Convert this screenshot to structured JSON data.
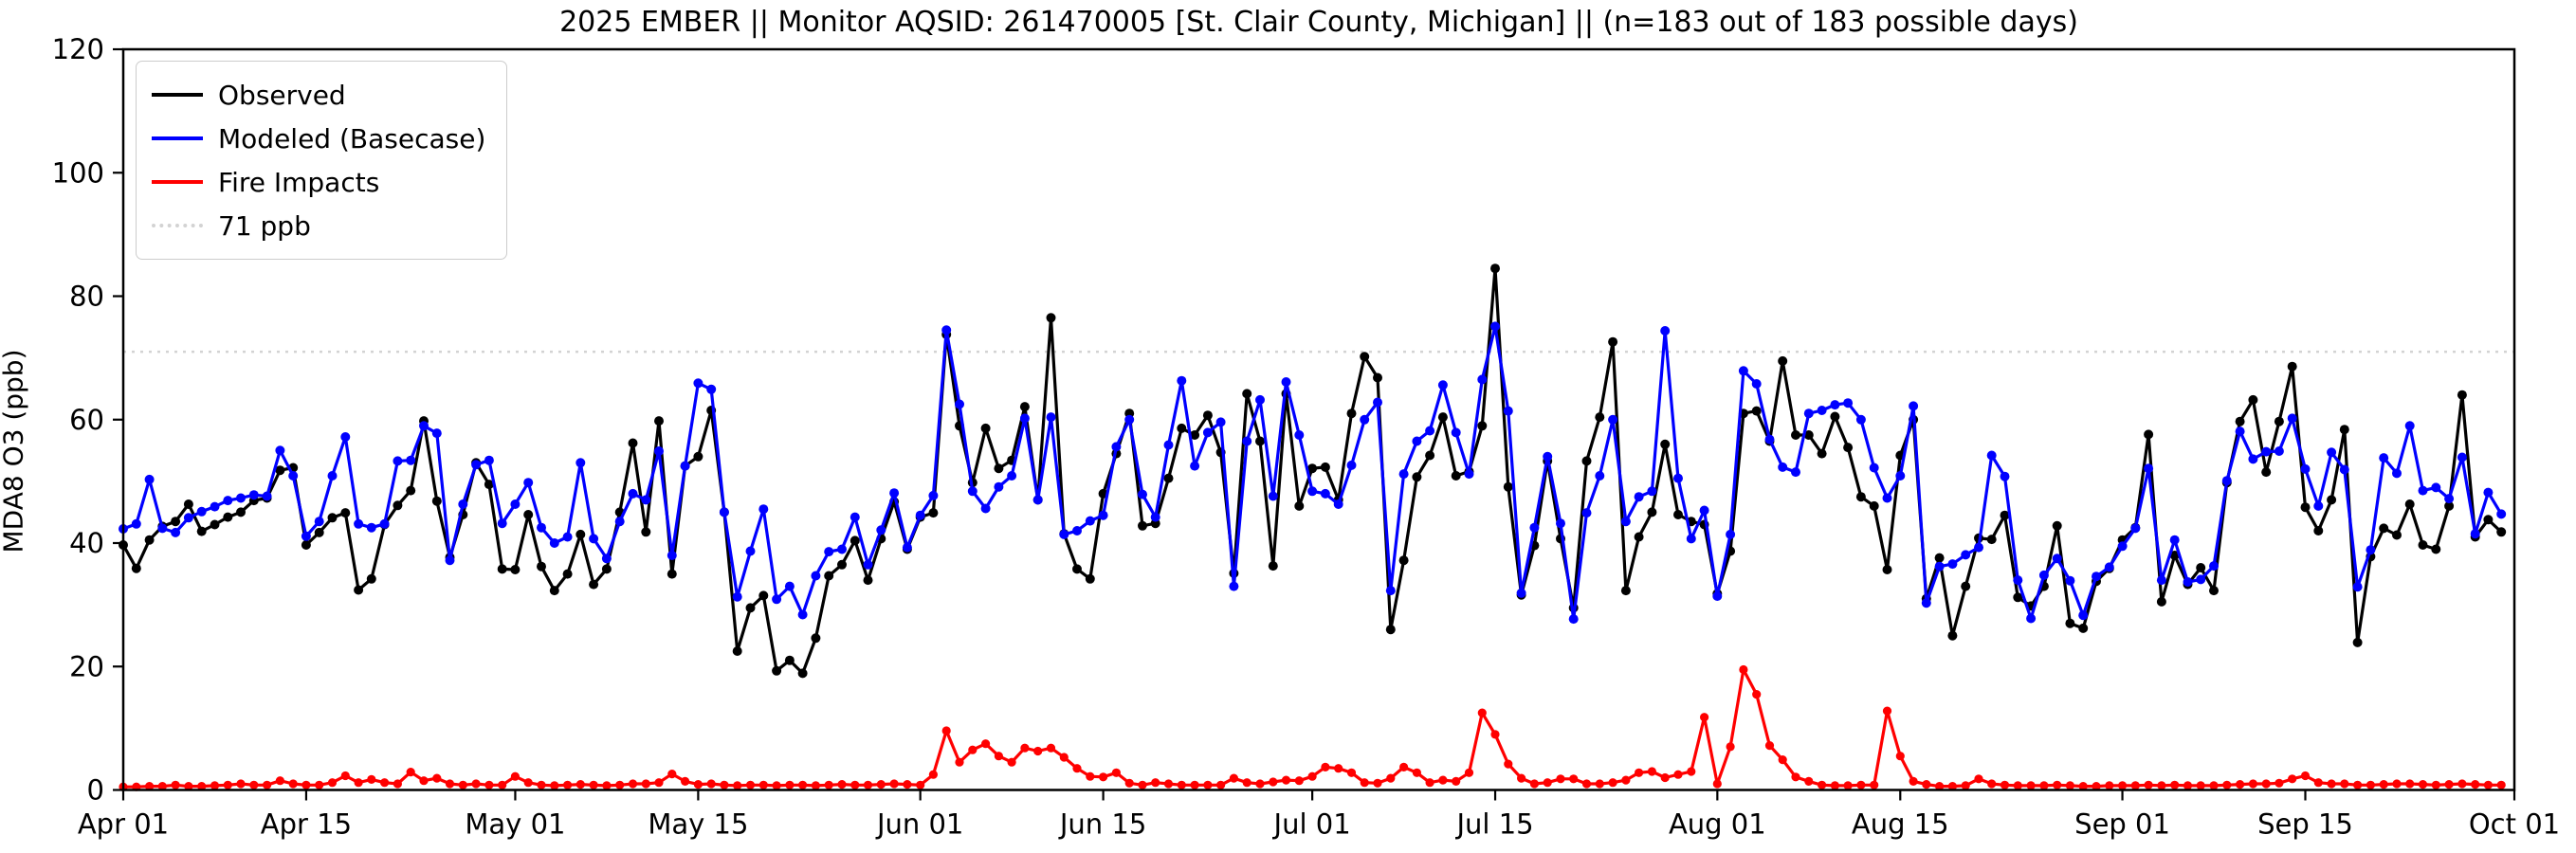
{
  "chart_data": {
    "type": "line",
    "title": "2025 EMBER || Monitor AQSID: 261470005 [St. Clair County, Michigan] || (n=183 out of 183 possible days)",
    "xlabel": "",
    "ylabel": "MDA8 O3 (ppb)",
    "ylim": [
      0,
      120
    ],
    "yticks": [
      0,
      20,
      40,
      60,
      80,
      100,
      120
    ],
    "x_start_label": "Apr 01",
    "n_days": 183,
    "grid": false,
    "legend_position": "upper-left",
    "xticks": [
      {
        "day": 0,
        "label": "Apr 01"
      },
      {
        "day": 14,
        "label": "Apr 15"
      },
      {
        "day": 30,
        "label": "May 01"
      },
      {
        "day": 44,
        "label": "May 15"
      },
      {
        "day": 61,
        "label": "Jun 01"
      },
      {
        "day": 75,
        "label": "Jun 15"
      },
      {
        "day": 91,
        "label": "Jul 01"
      },
      {
        "day": 105,
        "label": "Jul 15"
      },
      {
        "day": 122,
        "label": "Aug 01"
      },
      {
        "day": 136,
        "label": "Aug 15"
      },
      {
        "day": 153,
        "label": "Sep 01"
      },
      {
        "day": 167,
        "label": "Sep 15"
      },
      {
        "day": 183,
        "label": "Oct 01"
      }
    ],
    "threshold": {
      "value": 71,
      "label": "71 ppb",
      "color": "#d3d3d3",
      "style": "dotted"
    },
    "series": [
      {
        "name": "Observed",
        "color": "#000000",
        "style": "solid",
        "values": [
          39.7,
          35.9,
          40.5,
          42.7,
          43.5,
          46.3,
          41.9,
          43,
          44.2,
          45,
          46.9,
          47.3,
          51.8,
          52.2,
          39.7,
          41.7,
          44.1,
          44.9,
          32.4,
          34.2,
          43,
          46.1,
          48.5,
          59.8,
          46.8,
          37.7,
          44.6,
          53,
          49.5,
          35.8,
          35.7,
          44.6,
          36.2,
          32.3,
          35,
          41.4,
          33.3,
          35.8,
          45,
          56.2,
          41.8,
          59.8,
          35,
          52.5,
          54,
          61.5,
          45,
          22.5,
          29.5,
          31.5,
          19.3,
          21,
          18.9,
          24.6,
          34.7,
          36.5,
          40.4,
          34,
          40.7,
          46.7,
          39,
          44.2,
          44.9,
          73.8,
          59,
          49.8,
          58.6,
          52.1,
          53.4,
          62.1,
          47,
          76.5,
          41.5,
          35.8,
          34.2,
          48,
          54.5,
          61,
          42.8,
          43.2,
          50.5,
          58.6,
          57.5,
          60.7,
          54.7,
          35.1,
          64.2,
          56.5,
          36.3,
          64.2,
          46,
          52.1,
          52.3,
          47,
          61,
          70.2,
          66.8,
          26,
          37.2,
          50.7,
          54.2,
          60.4,
          50.9,
          51.6,
          59,
          84.5,
          49.1,
          31.6,
          39.6,
          53.3,
          40.7,
          29.5,
          53.3,
          60.4,
          72.6,
          32.3,
          41,
          45,
          56,
          44.6,
          43.5,
          43,
          31.8,
          38.7,
          61,
          61.4,
          56.5,
          69.5,
          57.5,
          57.5,
          54.5,
          60.5,
          55.5,
          47.5,
          46,
          35.7,
          54.2,
          60,
          31,
          37.6,
          25,
          33,
          40.8,
          40.6,
          44.5,
          31.2,
          29.8,
          33,
          42.8,
          27,
          26.2,
          33.8,
          35.9,
          40.5,
          42.5,
          57.6,
          30.5,
          38,
          33.3,
          36,
          32.3,
          49.8,
          59.7,
          63.2,
          51.5,
          59.7,
          68.6,
          45.8,
          42,
          47,
          58.4,
          23.9,
          37.8,
          42.4,
          41.3,
          46.3,
          39.7,
          39,
          46,
          64,
          41,
          43.8,
          41.8
        ]
      },
      {
        "name": "Modeled (Basecase)",
        "color": "#0000ff",
        "style": "solid",
        "values": [
          42.3,
          43.1,
          50.3,
          42.4,
          41.7,
          44.1,
          45.1,
          45.9,
          46.9,
          47.3,
          47.8,
          47.6,
          55,
          50.9,
          41.1,
          43.5,
          50.9,
          57.2,
          43.1,
          42.5,
          43.1,
          53.3,
          53.4,
          59,
          57.8,
          37.2,
          46.3,
          52.7,
          53.4,
          43.2,
          46.3,
          49.8,
          42.5,
          40,
          41,
          53,
          40.7,
          37.5,
          43.5,
          48,
          47,
          54.9,
          38,
          52.5,
          65.9,
          64.9,
          45,
          31.3,
          38.7,
          45.5,
          30.9,
          33,
          28.4,
          34.7,
          38.6,
          39,
          44.2,
          36.5,
          42.1,
          48.1,
          39.3,
          44.5,
          47.7,
          74.5,
          62.5,
          48.4,
          45.6,
          49.1,
          50.9,
          60.2,
          47,
          60.4,
          41.4,
          42,
          43.6,
          44.5,
          55.6,
          60,
          47.9,
          44.2,
          55.9,
          66.3,
          52.5,
          57.9,
          59.6,
          33,
          56.5,
          63.2,
          47.6,
          66.1,
          57.5,
          48.4,
          48,
          46.3,
          52.6,
          60,
          62.8,
          32.3,
          51.2,
          56.5,
          58.2,
          65.6,
          57.9,
          51.2,
          66.5,
          75.1,
          61.4,
          31.9,
          42.5,
          54,
          43.2,
          27.7,
          44.9,
          50.9,
          60,
          43.5,
          47.5,
          48.4,
          74.4,
          50.5,
          40.7,
          45.3,
          31.4,
          41.4,
          67.9,
          65.8,
          56.8,
          52.3,
          51.5,
          61,
          61.5,
          62.4,
          62.7,
          60,
          52.2,
          47.3,
          50.9,
          62.2,
          30.3,
          36.2,
          36.6,
          38.1,
          39.3,
          54.2,
          50.8,
          34,
          27.8,
          34.8,
          37.5,
          33.9,
          28.3,
          34.6,
          36.1,
          39.5,
          42.4,
          52.1,
          34,
          40.5,
          33.7,
          34.1,
          36.3,
          50.1,
          58.1,
          53.6,
          54.8,
          54.9,
          60.2,
          52,
          46,
          54.7,
          51.9,
          32.9,
          38.9,
          53.8,
          51.3,
          59,
          48.5,
          49,
          47.2,
          53.9,
          41.5,
          48.2,
          44.7
        ]
      },
      {
        "name": "Fire Impacts",
        "color": "#ff0000",
        "style": "solid",
        "values": [
          0.5,
          0.5,
          0.6,
          0.6,
          0.8,
          0.6,
          0.6,
          0.7,
          0.8,
          1,
          0.8,
          0.8,
          1.5,
          1,
          0.8,
          0.8,
          1.2,
          2.3,
          1.2,
          1.7,
          1.2,
          1,
          2.9,
          1.5,
          1.9,
          1,
          0.8,
          1,
          0.8,
          0.8,
          2.2,
          1.2,
          0.8,
          0.7,
          0.8,
          0.9,
          0.8,
          0.7,
          0.8,
          1,
          1,
          1.2,
          2.6,
          1.4,
          0.9,
          1,
          0.8,
          0.7,
          0.8,
          0.8,
          0.7,
          0.8,
          0.8,
          0.7,
          0.8,
          0.9,
          0.8,
          0.8,
          0.9,
          1,
          0.9,
          0.8,
          2.5,
          9.6,
          4.5,
          6.5,
          7.5,
          5.5,
          4.5,
          6.8,
          6.3,
          6.8,
          5.3,
          3.5,
          2.2,
          2.1,
          2.8,
          1.1,
          0.8,
          1.2,
          1,
          0.8,
          0.8,
          0.8,
          0.8,
          1.9,
          1.2,
          1,
          1.3,
          1.6,
          1.5,
          2.2,
          3.7,
          3.5,
          2.8,
          1.2,
          1.1,
          1.9,
          3.7,
          2.8,
          1.2,
          1.6,
          1.4,
          2.8,
          12.5,
          9,
          4.2,
          1.9,
          1,
          1.2,
          1.8,
          1.8,
          1,
          1,
          1.2,
          1.6,
          2.8,
          3,
          2,
          2.5,
          3,
          11.8,
          1,
          7,
          19.5,
          15.5,
          7.2,
          4.9,
          2.1,
          1.4,
          0.8,
          0.7,
          0.7,
          0.8,
          0.8,
          12.8,
          5.5,
          1.4,
          0.9,
          0.6,
          0.6,
          0.7,
          1.8,
          1,
          0.8,
          0.7,
          0.7,
          0.7,
          0.8,
          0.7,
          0.6,
          0.6,
          0.7,
          0.7,
          0.7,
          0.8,
          0.7,
          0.8,
          0.7,
          0.7,
          0.7,
          0.8,
          0.9,
          1,
          1,
          1.1,
          1.8,
          2.3,
          1.2,
          1,
          1,
          0.8,
          0.8,
          0.9,
          1,
          1,
          0.9,
          0.8,
          0.9,
          1,
          0.9,
          0.8,
          0.8
        ]
      }
    ]
  },
  "layout_colors": {
    "axes": "#000000",
    "background": "#ffffff",
    "legend_border": "#cccccc"
  }
}
